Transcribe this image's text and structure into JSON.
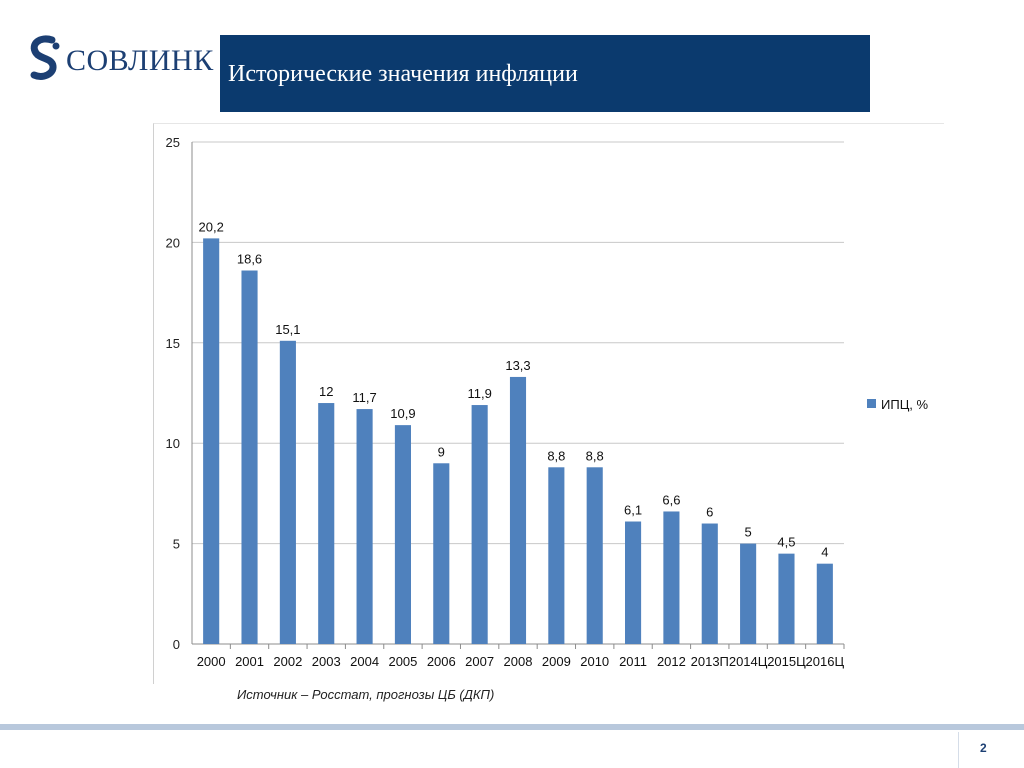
{
  "header": {
    "logo_text": "СОВЛИНК",
    "title": "Исторические значения инфляции"
  },
  "source_note": "Источник – Росстат, прогнозы ЦБ (ДКП)",
  "page_number": "2",
  "colors": {
    "bar": "#4f81bd",
    "title_bg": "#0b3a6e",
    "logo": "#1c3f73"
  },
  "chart_data": {
    "type": "bar",
    "categories": [
      "2000",
      "2001",
      "2002",
      "2003",
      "2004",
      "2005",
      "2006",
      "2007",
      "2008",
      "2009",
      "2010",
      "2011",
      "2012",
      "2013П",
      "2014Ц",
      "2015Ц",
      "2016Ц"
    ],
    "series": [
      {
        "name": "ИПЦ, %",
        "values": [
          20.2,
          18.6,
          15.1,
          12,
          11.7,
          10.9,
          9,
          11.9,
          13.3,
          8.8,
          8.8,
          6.1,
          6.6,
          6,
          5,
          4.5,
          4
        ],
        "labels": [
          "20,2",
          "18,6",
          "15,1",
          "12",
          "11,7",
          "10,9",
          "9",
          "11,9",
          "13,3",
          "8,8",
          "8,8",
          "6,1",
          "6,6",
          "6",
          "5",
          "4,5",
          "4"
        ]
      }
    ],
    "ylim": [
      0,
      25
    ],
    "yticks": [
      0,
      5,
      10,
      15,
      20,
      25
    ],
    "grid": true,
    "legend_position": "right"
  }
}
